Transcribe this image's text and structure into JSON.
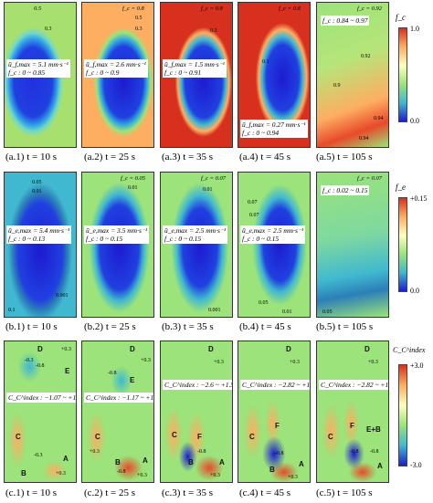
{
  "row_a": {
    "panels": [
      {
        "caption": "(a.1) t = 10 s",
        "u": "ū_f,max = 5.1 mm·s⁻¹",
        "fc": "f_c : 0 ~ 0.85",
        "top": "0.5",
        "labels": [
          "0.3",
          "0.1"
        ]
      },
      {
        "caption": "(a.2) t = 25 s",
        "u": "ū_f,max = 2.6 mm·s⁻¹",
        "fc": "f_c : 0 ~ 0.9",
        "top": "f_c = 0.8",
        "labels": [
          "0.5",
          "0.3",
          "0.1",
          "0.01"
        ]
      },
      {
        "caption": "(a.3) t = 35 s",
        "u": "ū_f,max = 1.5 mm·s⁻¹",
        "fc": "f_c : 0 ~ 0.91",
        "top": "f_c = 0.8",
        "labels": [
          "0.3",
          "0.1"
        ]
      },
      {
        "caption": "(a.4) t = 45 s",
        "u": "ū_f,max = 0.27 mm·s⁻¹",
        "fc": "f_c : 0 ~ 0.94",
        "top": "f_c = 0.8",
        "labels": [
          "0.1",
          "0.5"
        ]
      },
      {
        "caption": "(a.5) t = 105 s",
        "u": "",
        "fc": "f_c : 0.84 ~ 0.97",
        "top": "f_c = 0.92",
        "labels": [
          "0.92",
          "0.9",
          "0.94",
          "0.94"
        ]
      }
    ],
    "cbar": {
      "title": "f_c",
      "max": "1.0",
      "min": "0.0"
    }
  },
  "row_b": {
    "panels": [
      {
        "caption": "(b.1) t = 10 s",
        "u": "ū_e,max = 5.4 mm·s⁻¹",
        "fc": "f_c : 0 ~ 0.13",
        "top": "",
        "labels": [
          "0.05",
          "0.01",
          "0.001",
          "0.1"
        ]
      },
      {
        "caption": "(b.2) t = 25 s",
        "u": "ū_e,max = 3.5 mm·s⁻¹",
        "fc": "f_c : 0 ~ 0.15",
        "top": "f_c = 0.05",
        "labels": [
          "0.01"
        ]
      },
      {
        "caption": "(b.3) t = 35 s",
        "u": "ū_e,max = 2.5 mm·s⁻¹",
        "fc": "f_c : 0 ~ 0.15",
        "top": "f_c = 0.07",
        "labels": [
          "0.01",
          "0.001"
        ]
      },
      {
        "caption": "(b.4) t = 45 s",
        "u": "ū_e,max = 2.5 mm·s⁻¹",
        "fc": "f_c : 0 ~ 0.15",
        "top": "",
        "labels": [
          "0.07",
          "0.07",
          "0.05",
          "0.01"
        ]
      },
      {
        "caption": "(b.5) t = 105 s",
        "u": "",
        "fc": "f_c : 0.02 ~ 0.15",
        "top": "f_c = 0.07",
        "labels": [
          "0.05"
        ]
      }
    ],
    "cbar": {
      "title": "f_e",
      "max": "+0.15",
      "min": "0.0"
    }
  },
  "row_c": {
    "panels": [
      {
        "caption": "(c.1) t = 10 s",
        "range": "C_C^index : −1.07 ~ +1.24",
        "letters": [
          "D",
          "E",
          "C",
          "B",
          "A"
        ],
        "labels": [
          "+0.3",
          "-0.3",
          "-0.8",
          "-0.3",
          "+0.3"
        ]
      },
      {
        "caption": "(c.2) t = 25 s",
        "range": "C_C^index : −1.17 ~ +1.52",
        "letters": [
          "D",
          "E",
          "C",
          "B",
          "A"
        ],
        "labels": [
          "+0.3",
          "-0.8",
          "+0.3",
          "-0.8",
          "+0.3"
        ]
      },
      {
        "caption": "(c.3) t = 35 s",
        "range": "C_C^index : −2.6 ~ +1.5",
        "letters": [
          "D",
          "C",
          "F",
          "B",
          "A"
        ],
        "labels": [
          "+0.3",
          "-0.8",
          "+0.3"
        ]
      },
      {
        "caption": "(c.4) t = 45 s",
        "range": "C_C^index : −2.82 ~ +1.53",
        "letters": [
          "D",
          "F",
          "C",
          "B",
          "A"
        ],
        "labels": [
          "+0.3",
          "-0.8",
          "+0.3"
        ]
      },
      {
        "caption": "(c.5) t = 105 s",
        "range": "C_C^index : −2.82 ~ +1.52",
        "letters": [
          "D",
          "C",
          "F",
          "E+B",
          "A"
        ],
        "labels": [
          "+0.3",
          "-0.8",
          "-0.8"
        ]
      }
    ],
    "cbar": {
      "title": "C_C^index",
      "max": "+3.0",
      "min": "-3.0"
    }
  },
  "colors": {
    "hot": "#d7301f",
    "warm": "#fdae61",
    "mid": "#9be37a",
    "cool": "#2c7fb8",
    "cold": "#1d1bd0"
  }
}
